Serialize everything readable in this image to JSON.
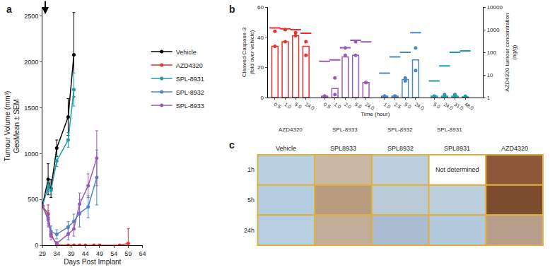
{
  "chart_data": [
    {
      "panel": "a",
      "type": "line",
      "marker": "circle",
      "x_label": "Days Post Implant",
      "y_label_lines": [
        "Tumour Volume (mm³)",
        "GeoMean ± SEM"
      ],
      "xlim": [
        29,
        64
      ],
      "xticks": [
        29,
        34,
        39,
        44,
        49,
        54,
        59,
        64
      ],
      "ylim": [
        0,
        2600
      ],
      "yticks": [
        0,
        500,
        1000,
        1500,
        2000,
        2500
      ],
      "legend": "right",
      "annotations": [
        {
          "x": 30
        }
      ],
      "series": [
        {
          "name": "Vehicle",
          "color": "#000000",
          "x": [
            29,
            31,
            32,
            34,
            38,
            40
          ],
          "values": [
            430,
            720,
            620,
            1060,
            1400,
            2080
          ],
          "errors": [
            20,
            170,
            100,
            90,
            200,
            460
          ]
        },
        {
          "name": "AZD4320",
          "color": "#e8302e",
          "x": [
            29,
            31,
            32,
            34,
            38,
            40,
            42,
            44,
            47,
            49,
            56,
            59
          ],
          "values": [
            430,
            340,
            120,
            5,
            0,
            0,
            0,
            0,
            0,
            0,
            0,
            20
          ],
          "errors": [
            20,
            100,
            30,
            10,
            0,
            0,
            0,
            0,
            0,
            0,
            0,
            160
          ]
        },
        {
          "name": "SPL-8931",
          "color": "#1f9bab",
          "x": [
            29,
            31,
            32,
            34,
            38,
            40
          ],
          "values": [
            430,
            640,
            600,
            920,
            1150,
            1700
          ],
          "errors": [
            20,
            60,
            50,
            60,
            80,
            180
          ]
        },
        {
          "name": "SPL-8932",
          "color": "#4a86c5",
          "x": [
            29,
            31,
            32,
            34,
            38,
            40,
            42,
            45,
            48
          ],
          "values": [
            430,
            300,
            150,
            120,
            200,
            260,
            350,
            420,
            740
          ],
          "errors": [
            20,
            80,
            60,
            50,
            60,
            80,
            150,
            120,
            300
          ]
        },
        {
          "name": "SPL-8933",
          "color": "#9b59b6",
          "x": [
            29,
            31,
            32,
            34,
            38,
            40,
            42,
            45,
            48
          ],
          "values": [
            430,
            280,
            100,
            20,
            120,
            180,
            450,
            650,
            950
          ],
          "errors": [
            20,
            80,
            40,
            20,
            60,
            80,
            120,
            130,
            300
          ]
        }
      ]
    },
    {
      "panel": "b",
      "type": "bar",
      "log": "y2",
      "x_label": "Time (hour)",
      "y_label_lines": [
        "Cleaved Caspase-3",
        "(fold over vehicle)"
      ],
      "y2_label_lines": [
        "AZD4320 tumour concentration",
        "(ng/g)"
      ],
      "ylim": [
        0,
        60
      ],
      "yticks": [
        0,
        20,
        40,
        60
      ],
      "y2lim": [
        1,
        10000
      ],
      "y2ticks": [
        1,
        10,
        100,
        1000,
        10000
      ],
      "groups": [
        {
          "name": "AZD4320",
          "color": "#e8302e",
          "categories": [
            "0.5",
            "1.0",
            "5.0",
            "24.0"
          ],
          "values": [
            34,
            37,
            41,
            34
          ],
          "points": [
            [
              44,
              34
            ],
            [
              45,
              37
            ],
            [
              43,
              41
            ],
            [
              37,
              28
            ]
          ],
          "concentration": [
            1200,
            1100,
            1000,
            700
          ]
        },
        {
          "name": "SPL-8933",
          "color": "#9b59b6",
          "categories": [
            "0.5",
            "1.0",
            "2.0",
            "5.0",
            "24.0"
          ],
          "values": [
            1,
            6,
            27,
            28,
            10
          ],
          "points": [
            [
              1,
              1
            ],
            [
              13,
              2
            ],
            [
              33,
              28
            ],
            [
              37,
              28
            ],
            [
              10,
              10
            ]
          ],
          "concentration": [
            40,
            46,
            160,
            340,
            290
          ]
        },
        {
          "name": "SPL-8932",
          "color": "#4a86c5",
          "categories": [
            "1.0",
            "2.5",
            "5.0",
            "24.0"
          ],
          "values": [
            1,
            1,
            12,
            25
          ],
          "points": [
            [
              1,
              1
            ],
            [
              1,
              1
            ],
            [
              13,
              11
            ],
            [
              33,
              18
            ]
          ],
          "concentration": [
            12,
            63,
            100,
            740
          ]
        },
        {
          "name": "SPL-8931",
          "color": "#1f9bab",
          "categories": [
            "5.0",
            "24.0",
            "31.0",
            "48.0"
          ],
          "values": [
            1,
            1,
            1,
            0.5
          ],
          "points": [
            [
              1,
              1
            ],
            [
              2,
              1
            ],
            [
              2,
              1
            ],
            [
              1,
              0.5
            ]
          ],
          "concentration": [
            5.4,
            25,
            100,
            115
          ]
        }
      ]
    },
    {
      "panel": "c",
      "type": "image_grid",
      "columns": [
        "Vehicle",
        "SPL8933",
        "SPL8932",
        "SPL8931",
        "AZD4320"
      ],
      "rows": [
        "1h",
        "5h",
        "24h"
      ],
      "colors": [
        [
          "#b8cfe0",
          "#c9b8a4",
          "#bccfdd",
          "#ffffff",
          "#8c5a3a"
        ],
        [
          "#b5cde0",
          "#b89a7c",
          "#b9c9d6",
          "#bccfdf",
          "#7e4c2e"
        ],
        [
          "#b7cee0",
          "#c2ae98",
          "#a9bcd0",
          "#b3c9dc",
          "#b69e8a"
        ]
      ],
      "annotations": [
        {
          "row": 0,
          "column": 3,
          "text": "Not determined"
        }
      ]
    }
  ]
}
